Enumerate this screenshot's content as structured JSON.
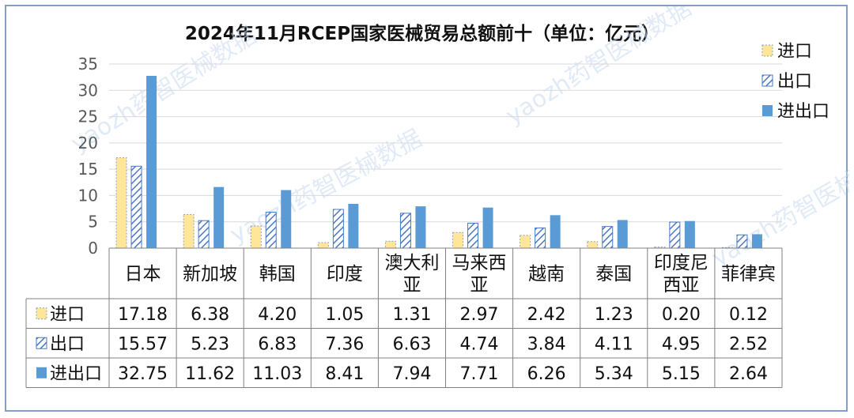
{
  "chart_data": {
    "type": "bar",
    "title": "2024年11月RCEP国家医械贸易总额前十（单位：亿元）",
    "xlabel": "",
    "ylabel": "",
    "ylim": [
      0,
      35
    ],
    "yticks": [
      "0",
      "5",
      "10",
      "15",
      "20",
      "25",
      "30",
      "35"
    ],
    "grid": true,
    "legend_position": "top-right",
    "categories": [
      "日本",
      "新加坡",
      "韩国",
      "印度",
      "澳大利亚",
      "马来西亚",
      "越南",
      "泰国",
      "印度尼西亚",
      "菲律宾"
    ],
    "category_labels": [
      [
        "日本"
      ],
      [
        "新加坡"
      ],
      [
        "韩国"
      ],
      [
        "印度"
      ],
      [
        "澳大利",
        "亚"
      ],
      [
        "马来西",
        "亚"
      ],
      [
        "越南"
      ],
      [
        "泰国"
      ],
      [
        "印度尼",
        "西亚"
      ],
      [
        "菲律宾"
      ]
    ],
    "series": [
      {
        "name": "进口",
        "style": "dotted-fill",
        "color": "#ffe699",
        "edge": "#8aa2c8",
        "values": [
          17.18,
          6.38,
          4.2,
          1.05,
          1.31,
          2.97,
          2.42,
          1.23,
          0.2,
          0.12
        ],
        "labels": [
          "17.18",
          "6.38",
          "4.20",
          "1.05",
          "1.31",
          "2.97",
          "2.42",
          "1.23",
          "0.20",
          "0.12"
        ]
      },
      {
        "name": "出口",
        "style": "hatched",
        "color": "#4a78c2",
        "edge": "#4a78c2",
        "values": [
          15.57,
          5.23,
          6.83,
          7.36,
          6.63,
          4.74,
          3.84,
          4.11,
          4.95,
          2.52
        ],
        "labels": [
          "15.57",
          "5.23",
          "6.83",
          "7.36",
          "6.63",
          "4.74",
          "3.84",
          "4.11",
          "4.95",
          "2.52"
        ]
      },
      {
        "name": "进出口",
        "style": "solid",
        "color": "#5b9bd5",
        "edge": "#5b9bd5",
        "values": [
          32.75,
          11.62,
          11.03,
          8.41,
          7.94,
          7.71,
          6.26,
          5.34,
          5.15,
          2.64
        ],
        "labels": [
          "32.75",
          "11.62",
          "11.03",
          "8.41",
          "7.94",
          "7.71",
          "6.26",
          "5.34",
          "5.15",
          "2.64"
        ]
      }
    ]
  },
  "watermark": "yaozh药智医械数据"
}
